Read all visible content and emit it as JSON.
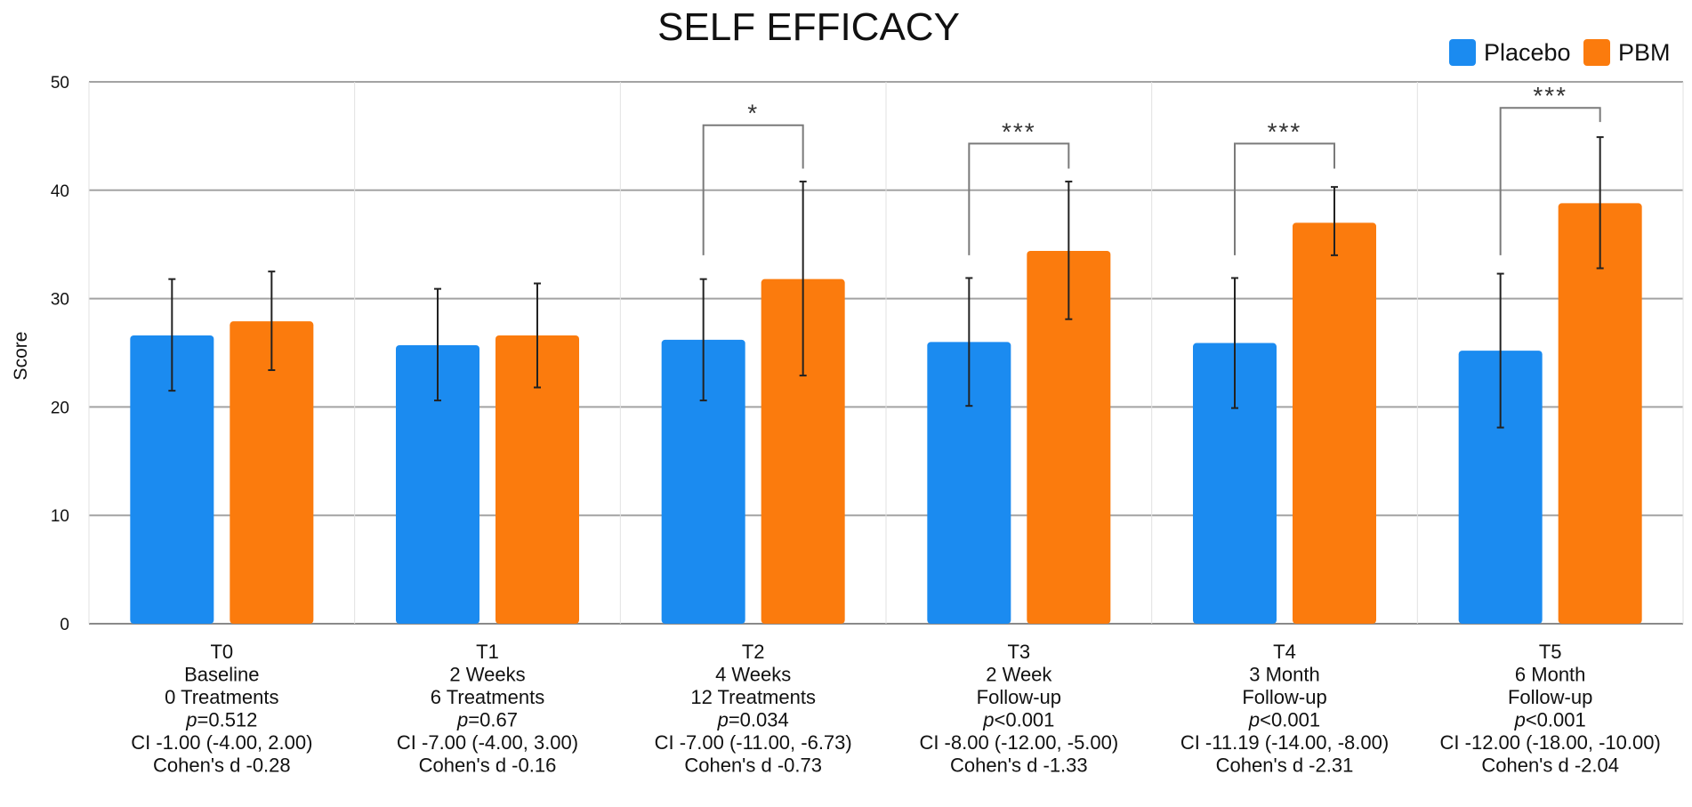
{
  "chart_data": {
    "type": "bar",
    "title": "SELF EFFICACY",
    "xlabel": "",
    "ylabel": "Score",
    "ylim": [
      0,
      50
    ],
    "yticks": [
      0,
      10,
      20,
      30,
      40,
      50
    ],
    "grid": true,
    "legend_position": "top-right",
    "categories": [
      "T0",
      "T1",
      "T2",
      "T3",
      "T4",
      "T5"
    ],
    "category_details": [
      {
        "period": "Baseline",
        "detail": "0 Treatments",
        "p": "=0.512",
        "ci": "CI -1.00 (-4.00, 2.00)",
        "d": "Cohen's d -0.28"
      },
      {
        "period": "2 Weeks",
        "detail": "6 Treatments",
        "p": "=0.67",
        "ci": "CI -7.00 (-4.00, 3.00)",
        "d": "Cohen's d -0.16"
      },
      {
        "period": "4 Weeks",
        "detail": "12 Treatments",
        "p": "=0.034",
        "ci": "CI -7.00 (-11.00, -6.73)",
        "d": "Cohen's d -0.73"
      },
      {
        "period": "2 Week",
        "detail": "Follow-up",
        "p": "<0.001",
        "ci": "CI -8.00 (-12.00, -5.00)",
        "d": "Cohen's d -1.33"
      },
      {
        "period": "3 Month",
        "detail": "Follow-up",
        "p": "<0.001",
        "ci": "CI -11.19 (-14.00, -8.00)",
        "d": "Cohen's d -2.31"
      },
      {
        "period": "6 Month",
        "detail": "Follow-up",
        "p": "<0.001",
        "ci": "CI -12.00 (-18.00, -10.00)",
        "d": "Cohen's d -2.04"
      }
    ],
    "p_prefix": "p",
    "series": [
      {
        "name": "Placebo",
        "color": "#1b8bf0",
        "values": [
          26.6,
          25.7,
          26.2,
          26.0,
          25.9,
          25.2
        ],
        "err_low": [
          21.5,
          20.6,
          20.6,
          20.1,
          19.9,
          18.1
        ],
        "err_high": [
          31.8,
          30.9,
          31.8,
          31.9,
          31.9,
          32.3
        ]
      },
      {
        "name": "PBM",
        "color": "#fb7b0d",
        "values": [
          27.9,
          26.6,
          31.8,
          34.4,
          37.0,
          38.8
        ],
        "err_low": [
          23.4,
          21.8,
          22.9,
          28.1,
          34.0,
          32.8
        ],
        "err_high": [
          32.5,
          31.4,
          40.8,
          40.8,
          40.3,
          44.9
        ]
      }
    ],
    "significance": [
      {
        "category_index": 2,
        "label": "*",
        "bracket_value": 46.0,
        "low_left": 34.0,
        "low_right": 42.0
      },
      {
        "category_index": 3,
        "label": "***",
        "bracket_value": 44.3,
        "low_left": 34.0,
        "low_right": 42.0
      },
      {
        "category_index": 4,
        "label": "***",
        "bracket_value": 44.3,
        "low_left": 34.0,
        "low_right": 42.0
      },
      {
        "category_index": 5,
        "label": "***",
        "bracket_value": 47.6,
        "low_left": 34.0,
        "low_right": 46.3
      }
    ],
    "colors": {
      "grid": "#a3a3a3",
      "axis": "#8a8a8a",
      "error_bar": "#222222",
      "bracket": "#7a7a7a"
    }
  }
}
